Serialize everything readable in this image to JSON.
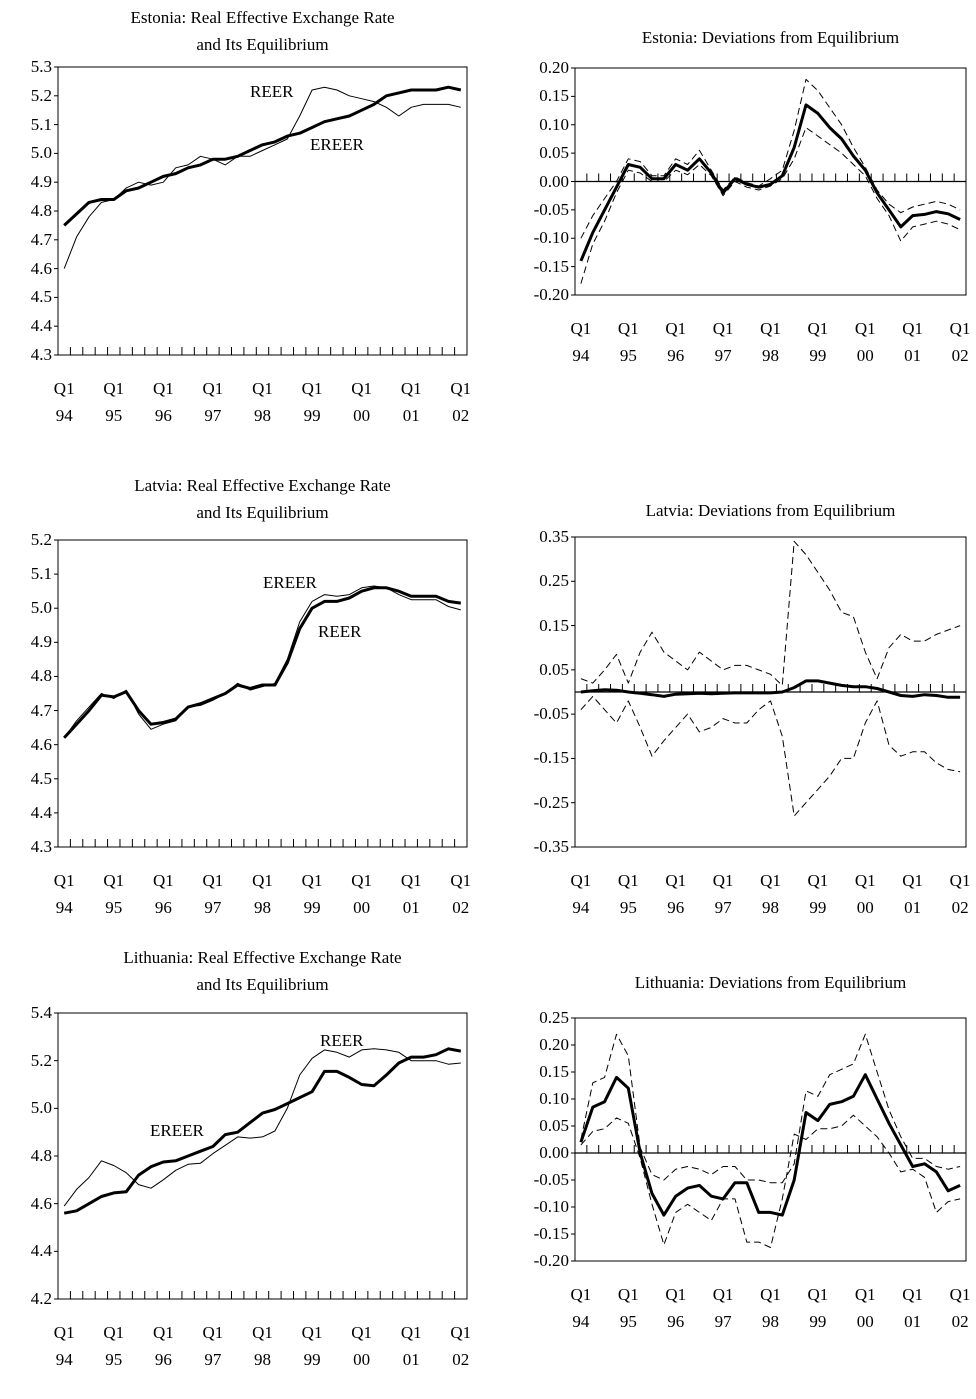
{
  "chart_data": [
    {
      "type": "line",
      "title": "Estonia: Real Effective Exchange Rate\nand Its Equilibrium",
      "categories": [
        "Q1\n94",
        null,
        null,
        null,
        "Q1\n95",
        null,
        null,
        null,
        "Q1\n96",
        null,
        null,
        null,
        "Q1\n97",
        null,
        null,
        null,
        "Q1\n98",
        null,
        null,
        null,
        "Q1\n99",
        null,
        null,
        null,
        "Q1\n00",
        null,
        null,
        null,
        "Q1\n01",
        null,
        null,
        null,
        "Q1\n02"
      ],
      "series": [
        {
          "name": "REER",
          "color": "#000000",
          "width": 1,
          "dash": false,
          "values": [
            4.6,
            4.71,
            4.78,
            4.83,
            4.84,
            4.88,
            4.9,
            4.89,
            4.9,
            4.95,
            4.96,
            4.99,
            4.98,
            4.96,
            4.99,
            4.99,
            5.01,
            5.03,
            5.05,
            5.13,
            5.22,
            5.23,
            5.22,
            5.2,
            5.19,
            5.18,
            5.16,
            5.13,
            5.16,
            5.17,
            5.17,
            5.17,
            5.16
          ]
        },
        {
          "name": "EREER",
          "color": "#000000",
          "width": 3,
          "dash": false,
          "values": [
            4.75,
            4.79,
            4.83,
            4.84,
            4.84,
            4.87,
            4.88,
            4.9,
            4.92,
            4.93,
            4.95,
            4.96,
            4.98,
            4.98,
            4.99,
            5.01,
            5.03,
            5.04,
            5.06,
            5.07,
            5.09,
            5.11,
            5.12,
            5.13,
            5.15,
            5.17,
            5.2,
            5.21,
            5.22,
            5.22,
            5.22,
            5.23,
            5.22
          ]
        }
      ],
      "ylim": [
        4.3,
        5.3
      ],
      "yticks": [
        4.3,
        4.4,
        4.5,
        4.6,
        4.7,
        4.8,
        4.9,
        {
          "value": 5,
          "label": "5.0"
        },
        5.1,
        5.2,
        5.3
      ],
      "zero_line": false
    },
    {
      "type": "line",
      "title": "Estonia: Deviations from Equilibrium",
      "categories": [
        "Q1\n94",
        null,
        null,
        null,
        "Q1\n95",
        null,
        null,
        null,
        "Q1\n96",
        null,
        null,
        null,
        "Q1\n97",
        null,
        null,
        null,
        "Q1\n98",
        null,
        null,
        null,
        "Q1\n99",
        null,
        null,
        null,
        "Q1\n00",
        null,
        null,
        null,
        "Q1\n01",
        null,
        null,
        null,
        "Q1\n02"
      ],
      "series": [
        {
          "color": "#000000",
          "width": 3,
          "dash": false,
          "values": [
            -0.14,
            -0.09,
            -0.05,
            -0.01,
            0.03,
            0.025,
            0.005,
            0.005,
            0.03,
            0.02,
            0.04,
            0.015,
            -0.02,
            0.005,
            -0.005,
            -0.01,
            -0.005,
            0.01,
            0.06,
            0.135,
            0.12,
            0.095,
            0.075,
            0.045,
            0.02,
            -0.02,
            -0.05,
            -0.08,
            -0.06,
            -0.058,
            -0.053,
            -0.057,
            -0.067
          ]
        },
        {
          "color": "#000000",
          "width": 1,
          "dash": true,
          "values": [
            -0.1,
            -0.06,
            -0.03,
            0.0,
            0.04,
            0.035,
            0.01,
            0.01,
            0.04,
            0.03,
            0.055,
            0.02,
            -0.015,
            0.008,
            -0.002,
            -0.008,
            0.005,
            0.02,
            0.09,
            0.18,
            0.16,
            0.13,
            0.1,
            0.06,
            0.025,
            -0.015,
            -0.04,
            -0.055,
            -0.045,
            -0.04,
            -0.035,
            -0.04,
            -0.05
          ]
        },
        {
          "color": "#000000",
          "width": 1,
          "dash": true,
          "values": [
            -0.18,
            -0.11,
            -0.07,
            -0.02,
            0.02,
            0.015,
            0.0,
            0.0,
            0.02,
            0.012,
            0.03,
            0.01,
            -0.025,
            0.0,
            -0.01,
            -0.015,
            -0.008,
            0.005,
            0.04,
            0.095,
            0.08,
            0.065,
            0.05,
            0.03,
            0.01,
            -0.03,
            -0.06,
            -0.105,
            -0.08,
            -0.075,
            -0.07,
            -0.075,
            -0.085
          ]
        }
      ],
      "ylim": [
        -0.2,
        0.2
      ],
      "yticks": [
        {
          "value": -0.2,
          "label": "-0.20"
        },
        -0.15,
        {
          "value": -0.1,
          "label": "-0.10"
        },
        -0.05,
        {
          "value": 0,
          "label": "0.00"
        },
        0.05,
        {
          "value": 0.1,
          "label": "0.10"
        },
        0.15,
        {
          "value": 0.2,
          "label": "0.20"
        }
      ],
      "zero_line": true
    },
    {
      "type": "line",
      "title": "Latvia: Real Effective Exchange Rate\nand Its Equilibrium",
      "categories": [
        "Q1\n94",
        null,
        null,
        null,
        "Q1\n95",
        null,
        null,
        null,
        "Q1\n96",
        null,
        null,
        null,
        "Q1\n97",
        null,
        null,
        null,
        "Q1\n98",
        null,
        null,
        null,
        "Q1\n99",
        null,
        null,
        null,
        "Q1\n00",
        null,
        null,
        null,
        "Q1\n01",
        null,
        null,
        null,
        "Q1\n02"
      ],
      "series": [
        {
          "name": "REER",
          "color": "#000000",
          "width": 3,
          "dash": false,
          "values": [
            4.62,
            4.66,
            4.7,
            4.745,
            4.74,
            4.755,
            4.7,
            4.66,
            4.665,
            4.675,
            4.71,
            4.72,
            4.735,
            4.75,
            4.775,
            4.765,
            4.775,
            4.775,
            4.84,
            4.94,
            5.0,
            5.02,
            5.02,
            5.03,
            5.05,
            5.06,
            5.06,
            5.05,
            5.035,
            5.035,
            5.035,
            5.02,
            5.015
          ]
        },
        {
          "name": "EREER",
          "color": "#000000",
          "width": 1,
          "dash": false,
          "values": [
            4.62,
            4.67,
            4.71,
            4.75,
            4.735,
            4.76,
            4.69,
            4.645,
            4.66,
            4.67,
            4.71,
            4.715,
            4.73,
            4.75,
            4.78,
            4.76,
            4.77,
            4.78,
            4.85,
            4.96,
            5.02,
            5.04,
            5.035,
            5.04,
            5.06,
            5.065,
            5.06,
            5.04,
            5.025,
            5.025,
            5.025,
            5.005,
            4.995
          ]
        }
      ],
      "ylim": [
        4.3,
        5.2
      ],
      "yticks": [
        4.3,
        4.4,
        4.5,
        4.6,
        4.7,
        4.8,
        4.9,
        {
          "value": 5,
          "label": "5.0"
        },
        5.1,
        5.2
      ],
      "zero_line": false
    },
    {
      "type": "line",
      "title": "Latvia: Deviations from Equilibrium",
      "categories": [
        "Q1\n94",
        null,
        null,
        null,
        "Q1\n95",
        null,
        null,
        null,
        "Q1\n96",
        null,
        null,
        null,
        "Q1\n97",
        null,
        null,
        null,
        "Q1\n98",
        null,
        null,
        null,
        "Q1\n99",
        null,
        null,
        null,
        "Q1\n00",
        null,
        null,
        null,
        "Q1\n01",
        null,
        null,
        null,
        "Q1\n02"
      ],
      "series": [
        {
          "color": "#000000",
          "width": 3,
          "dash": false,
          "values": [
            0.0,
            0.003,
            0.005,
            0.004,
            0.0,
            -0.003,
            -0.006,
            -0.01,
            -0.005,
            -0.004,
            -0.003,
            -0.004,
            -0.003,
            -0.002,
            -0.002,
            -0.002,
            -0.002,
            0.0,
            0.01,
            0.025,
            0.025,
            0.02,
            0.015,
            0.012,
            0.012,
            0.008,
            0.0,
            -0.008,
            -0.01,
            -0.006,
            -0.008,
            -0.012,
            -0.012
          ]
        },
        {
          "color": "#000000",
          "width": 1,
          "dash": true,
          "values": [
            0.03,
            0.02,
            0.05,
            0.085,
            0.02,
            0.09,
            0.135,
            0.09,
            0.07,
            0.05,
            0.09,
            0.07,
            0.05,
            0.06,
            0.06,
            0.05,
            0.04,
            0.015,
            0.34,
            0.31,
            0.27,
            0.23,
            0.18,
            0.17,
            0.09,
            0.03,
            0.1,
            0.13,
            0.115,
            0.115,
            0.13,
            0.14,
            0.15
          ]
        },
        {
          "color": "#000000",
          "width": 1,
          "dash": true,
          "values": [
            -0.04,
            -0.01,
            -0.04,
            -0.07,
            -0.02,
            -0.08,
            -0.145,
            -0.11,
            -0.08,
            -0.05,
            -0.09,
            -0.08,
            -0.06,
            -0.07,
            -0.07,
            -0.04,
            -0.02,
            -0.1,
            -0.28,
            -0.25,
            -0.22,
            -0.19,
            -0.15,
            -0.15,
            -0.07,
            -0.02,
            -0.12,
            -0.145,
            -0.135,
            -0.135,
            -0.16,
            -0.175,
            -0.18
          ]
        }
      ],
      "ylim": [
        -0.35,
        0.35
      ],
      "yticks": [
        -0.35,
        -0.25,
        -0.15,
        -0.05,
        0.05,
        0.15,
        0.25,
        0.35
      ],
      "zero_line": true
    },
    {
      "type": "line",
      "title": "Lithuania: Real Effective Exchange Rate\nand Its Equilibrium",
      "categories": [
        "Q1\n94",
        null,
        null,
        null,
        "Q1\n95",
        null,
        null,
        null,
        "Q1\n96",
        null,
        null,
        null,
        "Q1\n97",
        null,
        null,
        null,
        "Q1\n98",
        null,
        null,
        null,
        "Q1\n99",
        null,
        null,
        null,
        "Q1\n00",
        null,
        null,
        null,
        "Q1\n01",
        null,
        null,
        null,
        "Q1\n02"
      ],
      "series": [
        {
          "name": "REER",
          "color": "#000000",
          "width": 1,
          "dash": false,
          "values": [
            4.59,
            4.66,
            4.71,
            4.78,
            4.76,
            4.73,
            4.68,
            4.665,
            4.7,
            4.74,
            4.765,
            4.77,
            4.81,
            4.845,
            4.88,
            4.875,
            4.88,
            4.905,
            5.0,
            5.14,
            5.21,
            5.245,
            5.235,
            5.215,
            5.245,
            5.25,
            5.245,
            5.235,
            5.2,
            5.2,
            5.2,
            5.185,
            5.19
          ]
        },
        {
          "name": "EREER",
          "color": "#000000",
          "width": 3,
          "dash": false,
          "values": [
            4.56,
            4.57,
            4.6,
            4.63,
            4.645,
            4.65,
            4.72,
            4.755,
            4.775,
            4.78,
            4.8,
            4.82,
            4.84,
            4.89,
            4.9,
            4.94,
            4.98,
            4.995,
            5.02,
            5.045,
            5.07,
            5.155,
            5.155,
            5.13,
            5.1,
            5.095,
            5.14,
            5.19,
            5.215,
            5.215,
            5.225,
            5.25,
            5.24
          ]
        }
      ],
      "ylim": [
        4.2,
        5.4
      ],
      "yticks": [
        4.2,
        4.4,
        4.6,
        4.8,
        {
          "value": 5,
          "label": "5.0"
        },
        5.2,
        5.4
      ],
      "zero_line": false
    },
    {
      "type": "line",
      "title": "Lithuania: Deviations from Equilibrium",
      "categories": [
        "Q1\n94",
        null,
        null,
        null,
        "Q1\n95",
        null,
        null,
        null,
        "Q1\n96",
        null,
        null,
        null,
        "Q1\n97",
        null,
        null,
        null,
        "Q1\n98",
        null,
        null,
        null,
        "Q1\n99",
        null,
        null,
        null,
        "Q1\n00",
        null,
        null,
        null,
        "Q1\n01",
        null,
        null,
        null,
        "Q1\n02"
      ],
      "series": [
        {
          "color": "#000000",
          "width": 3,
          "dash": false,
          "values": [
            0.02,
            0.085,
            0.095,
            0.14,
            0.12,
            0.0,
            -0.075,
            -0.115,
            -0.08,
            -0.065,
            -0.06,
            -0.08,
            -0.085,
            -0.055,
            -0.055,
            -0.11,
            -0.11,
            -0.115,
            -0.05,
            0.075,
            0.06,
            0.09,
            0.095,
            0.105,
            0.145,
            0.1,
            0.055,
            0.015,
            -0.025,
            -0.02,
            -0.035,
            -0.07,
            -0.06
          ]
        },
        {
          "color": "#000000",
          "width": 1,
          "dash": true,
          "values": [
            0.025,
            0.13,
            0.14,
            0.22,
            0.18,
            0.01,
            -0.04,
            -0.05,
            -0.03,
            -0.025,
            -0.03,
            -0.04,
            -0.025,
            -0.025,
            -0.05,
            -0.05,
            -0.055,
            -0.055,
            -0.02,
            0.115,
            0.105,
            0.145,
            0.155,
            0.165,
            0.22,
            0.15,
            0.08,
            0.03,
            -0.01,
            -0.01,
            -0.025,
            -0.03,
            -0.025
          ]
        },
        {
          "color": "#000000",
          "width": 1,
          "dash": true,
          "values": [
            0.015,
            0.04,
            0.045,
            0.065,
            0.055,
            -0.01,
            -0.095,
            -0.17,
            -0.11,
            -0.095,
            -0.11,
            -0.125,
            -0.085,
            -0.085,
            -0.165,
            -0.165,
            -0.175,
            -0.085,
            0.035,
            0.025,
            0.045,
            0.045,
            0.05,
            0.07,
            0.05,
            0.03,
            0.0,
            -0.035,
            -0.03,
            -0.045,
            -0.11,
            -0.09,
            -0.085
          ]
        }
      ],
      "ylim": [
        -0.2,
        0.25
      ],
      "yticks": [
        {
          "value": -0.2,
          "label": "-0.20"
        },
        -0.15,
        {
          "value": -0.1,
          "label": "-0.10"
        },
        -0.05,
        {
          "value": 0,
          "label": "0.00"
        },
        0.05,
        {
          "value": 0.1,
          "label": "0.10"
        },
        0.15,
        {
          "value": 0.2,
          "label": "0.20"
        },
        0.25
      ],
      "zero_line": true
    }
  ]
}
